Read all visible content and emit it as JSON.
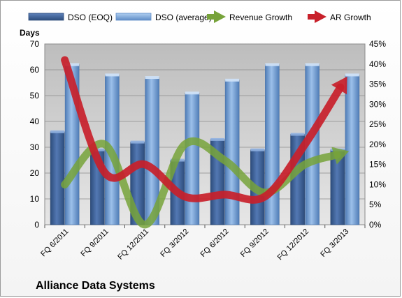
{
  "chart_data": {
    "type": "bar",
    "title": "Alliance Data Systems",
    "ylabel_left": "Days",
    "ylabel_right": "",
    "xlabel": "",
    "categories": [
      "FQ 6/2011",
      "FQ 9/2011",
      "FQ 12/2011",
      "FQ 3/2012",
      "FQ 6/2012",
      "FQ 9/2012",
      "FQ 12/2012",
      "FQ 3/2013"
    ],
    "ylim_left": [
      0,
      70
    ],
    "yticks_left": [
      0,
      10,
      20,
      30,
      40,
      50,
      60,
      70
    ],
    "ylim_right": [
      0,
      0.45
    ],
    "yticks_right": [
      "0%",
      "5%",
      "10%",
      "15%",
      "20%",
      "25%",
      "30%",
      "35%",
      "40%",
      "45%"
    ],
    "grid": true,
    "legend_position": "top",
    "series": [
      {
        "name": "DSO (EOQ)",
        "kind": "bar",
        "axis": "left",
        "color": "#3d5f95",
        "values": [
          36,
          29,
          32,
          25,
          33,
          29,
          35,
          29
        ]
      },
      {
        "name": "DSO (average)",
        "kind": "bar",
        "axis": "left",
        "color": "#6e98cc",
        "values": [
          62,
          58,
          57,
          51,
          56,
          62,
          62,
          58
        ]
      },
      {
        "name": "Revenue Growth",
        "kind": "line-arrow",
        "axis": "right",
        "color": "#77a33a",
        "values": [
          0.1,
          0.2,
          0.0,
          0.2,
          0.16,
          0.08,
          0.15,
          0.18
        ]
      },
      {
        "name": "AR Growth",
        "kind": "line-arrow",
        "axis": "right",
        "color": "#c8202a",
        "values": [
          0.41,
          0.13,
          0.15,
          0.07,
          0.075,
          0.07,
          0.2,
          0.36
        ]
      }
    ]
  }
}
